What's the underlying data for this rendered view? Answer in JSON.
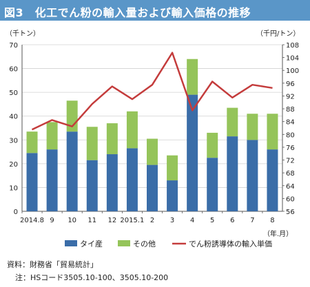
{
  "title": "図3　化工でん粉の輸入量および輸入価格の推移",
  "chart_data": {
    "type": "bar+line",
    "y_left_unit": "（千トン）",
    "y_right_unit": "（千円/トン）",
    "x_unit": "（年.月）",
    "categories": [
      "2014.8",
      "9",
      "10",
      "11",
      "12",
      "2015.1",
      "2",
      "3",
      "4",
      "5",
      "6",
      "7",
      "8"
    ],
    "ylim_left": [
      0,
      70
    ],
    "ylim_right": [
      56,
      108
    ],
    "yticks_left": [
      0,
      10,
      20,
      30,
      40,
      50,
      60,
      70
    ],
    "yticks_right": [
      56,
      60,
      64,
      68,
      72,
      76,
      80,
      84,
      88,
      92,
      96,
      100,
      104,
      108
    ],
    "grid": true,
    "legend_position": "bottom",
    "series": [
      {
        "name": "タイ産",
        "type": "bar",
        "stack": "imports",
        "color": "#3a6da8",
        "values": [
          24.5,
          26,
          33.5,
          21.5,
          24,
          26.5,
          19.5,
          13,
          49,
          22.5,
          31.5,
          30,
          26
        ]
      },
      {
        "name": "その他",
        "type": "bar",
        "stack": "imports",
        "color": "#95c45a",
        "values": [
          9,
          11.5,
          13,
          14,
          13,
          15.5,
          11,
          10.5,
          15,
          10.5,
          12,
          11,
          15
        ]
      },
      {
        "name": "でん粉誘導体の輸入単価",
        "type": "line",
        "axis": "right",
        "color": "#c43c3c",
        "values": [
          81.5,
          84.5,
          82.5,
          89.5,
          95,
          91,
          95.5,
          105.5,
          87.5,
          96.5,
          91.5,
          95.5,
          94.5
        ]
      }
    ]
  },
  "footer": {
    "source": "資料：財務省「貿易統計」",
    "note": "注：HSコード3505.10-100、3505.10-200"
  }
}
